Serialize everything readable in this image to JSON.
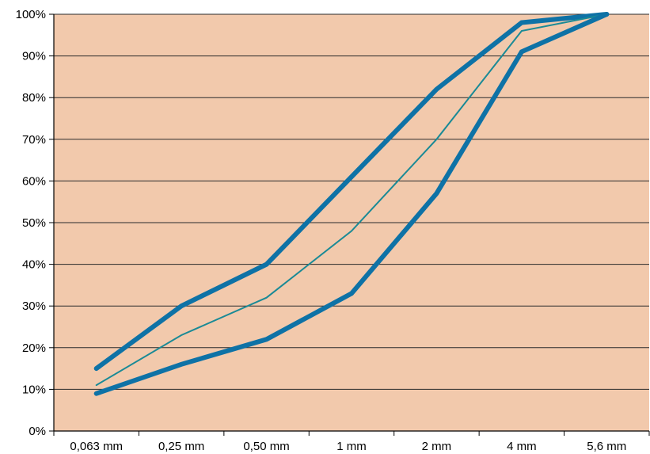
{
  "chart_data": {
    "type": "line",
    "categories": [
      "0,063 mm",
      "0,25 mm",
      "0,50 mm",
      "1 mm",
      "2 mm",
      "4 mm",
      "5,6 mm"
    ],
    "y_ticks": [
      "0%",
      "10%",
      "20%",
      "30%",
      "40%",
      "50%",
      "60%",
      "70%",
      "80%",
      "90%",
      "100%"
    ],
    "ylim": [
      0,
      100
    ],
    "grid": true,
    "plot_background": "#F2C9AC",
    "series": [
      {
        "values": [
          15,
          30,
          40,
          61,
          82,
          98,
          100
        ],
        "color": "#0E72A6",
        "style": "thick"
      },
      {
        "values": [
          11,
          23,
          32,
          48,
          70,
          96,
          100
        ],
        "color": "#1A8A96",
        "style": "thin"
      },
      {
        "values": [
          9,
          16,
          22,
          33,
          57,
          91,
          100
        ],
        "color": "#0E72A6",
        "style": "thick"
      }
    ]
  }
}
